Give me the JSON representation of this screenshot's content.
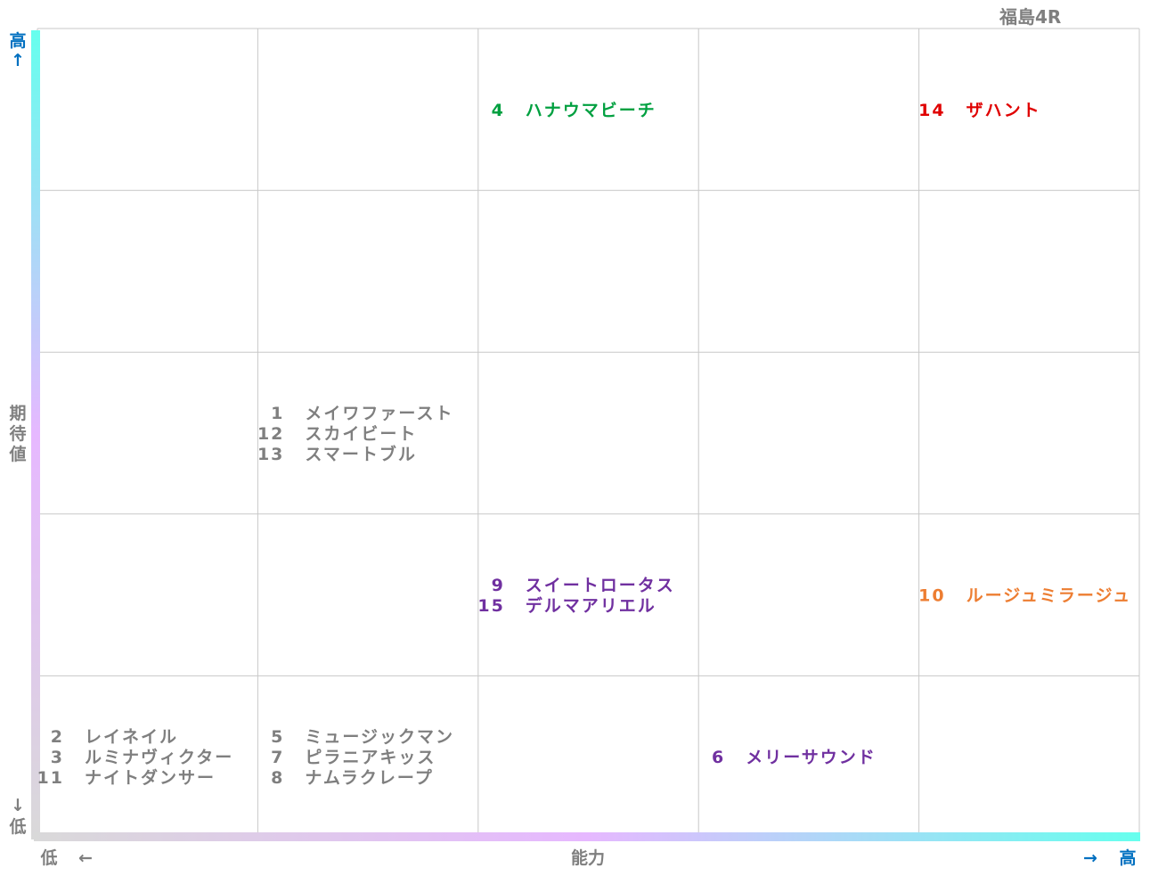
{
  "title": "福島4R",
  "chart_data": {
    "type": "table",
    "grid": {
      "cols": 5,
      "rows": 5
    },
    "x_axis": {
      "label": "能力",
      "low": "低",
      "high": "高",
      "low_arrow": "←",
      "high_arrow": "→"
    },
    "y_axis": {
      "label": "期待値",
      "low": "低",
      "high": "高",
      "low_arrow": "↓",
      "high_arrow": "↑"
    },
    "cells": [
      {
        "col": 3,
        "row": 1,
        "color": "#00a040",
        "entries": [
          {
            "num": "4",
            "name": "ハナウマビーチ"
          }
        ]
      },
      {
        "col": 5,
        "row": 1,
        "color": "#e00000",
        "entries": [
          {
            "num": "14",
            "name": "ザハント"
          }
        ]
      },
      {
        "col": 2,
        "row": 3,
        "color": "#7f7f7f",
        "entries": [
          {
            "num": "1",
            "name": "メイワファースト"
          },
          {
            "num": "12",
            "name": "スカイビート"
          },
          {
            "num": "13",
            "name": "スマートブル"
          }
        ]
      },
      {
        "col": 3,
        "row": 4,
        "color": "#7030a0",
        "entries": [
          {
            "num": "9",
            "name": "スイートロータス"
          },
          {
            "num": "15",
            "name": "デルマアリエル"
          }
        ]
      },
      {
        "col": 5,
        "row": 4,
        "color": "#ed7d31",
        "entries": [
          {
            "num": "10",
            "name": "ルージュミラージュ"
          }
        ]
      },
      {
        "col": 1,
        "row": 5,
        "color": "#7f7f7f",
        "entries": [
          {
            "num": "2",
            "name": "レイネイル"
          },
          {
            "num": "3",
            "name": "ルミナヴィクター"
          },
          {
            "num": "11",
            "name": "ナイトダンサー"
          }
        ]
      },
      {
        "col": 2,
        "row": 5,
        "color": "#7f7f7f",
        "entries": [
          {
            "num": "5",
            "name": "ミュージックマン"
          },
          {
            "num": "7",
            "name": "ピラニアキッス"
          },
          {
            "num": "8",
            "name": "ナムラクレープ"
          }
        ]
      },
      {
        "col": 4,
        "row": 5,
        "color": "#7030a0",
        "entries": [
          {
            "num": "6",
            "name": "メリーサウンド"
          }
        ]
      }
    ]
  },
  "colors": {
    "grid_line": "#c8c8c8",
    "axis_text": "#7f7f7f",
    "high_label": "#0070c0",
    "gradient_low": "#d9d9d9",
    "gradient_mid": "#e6b8ff",
    "gradient_high": "#66ffee"
  }
}
